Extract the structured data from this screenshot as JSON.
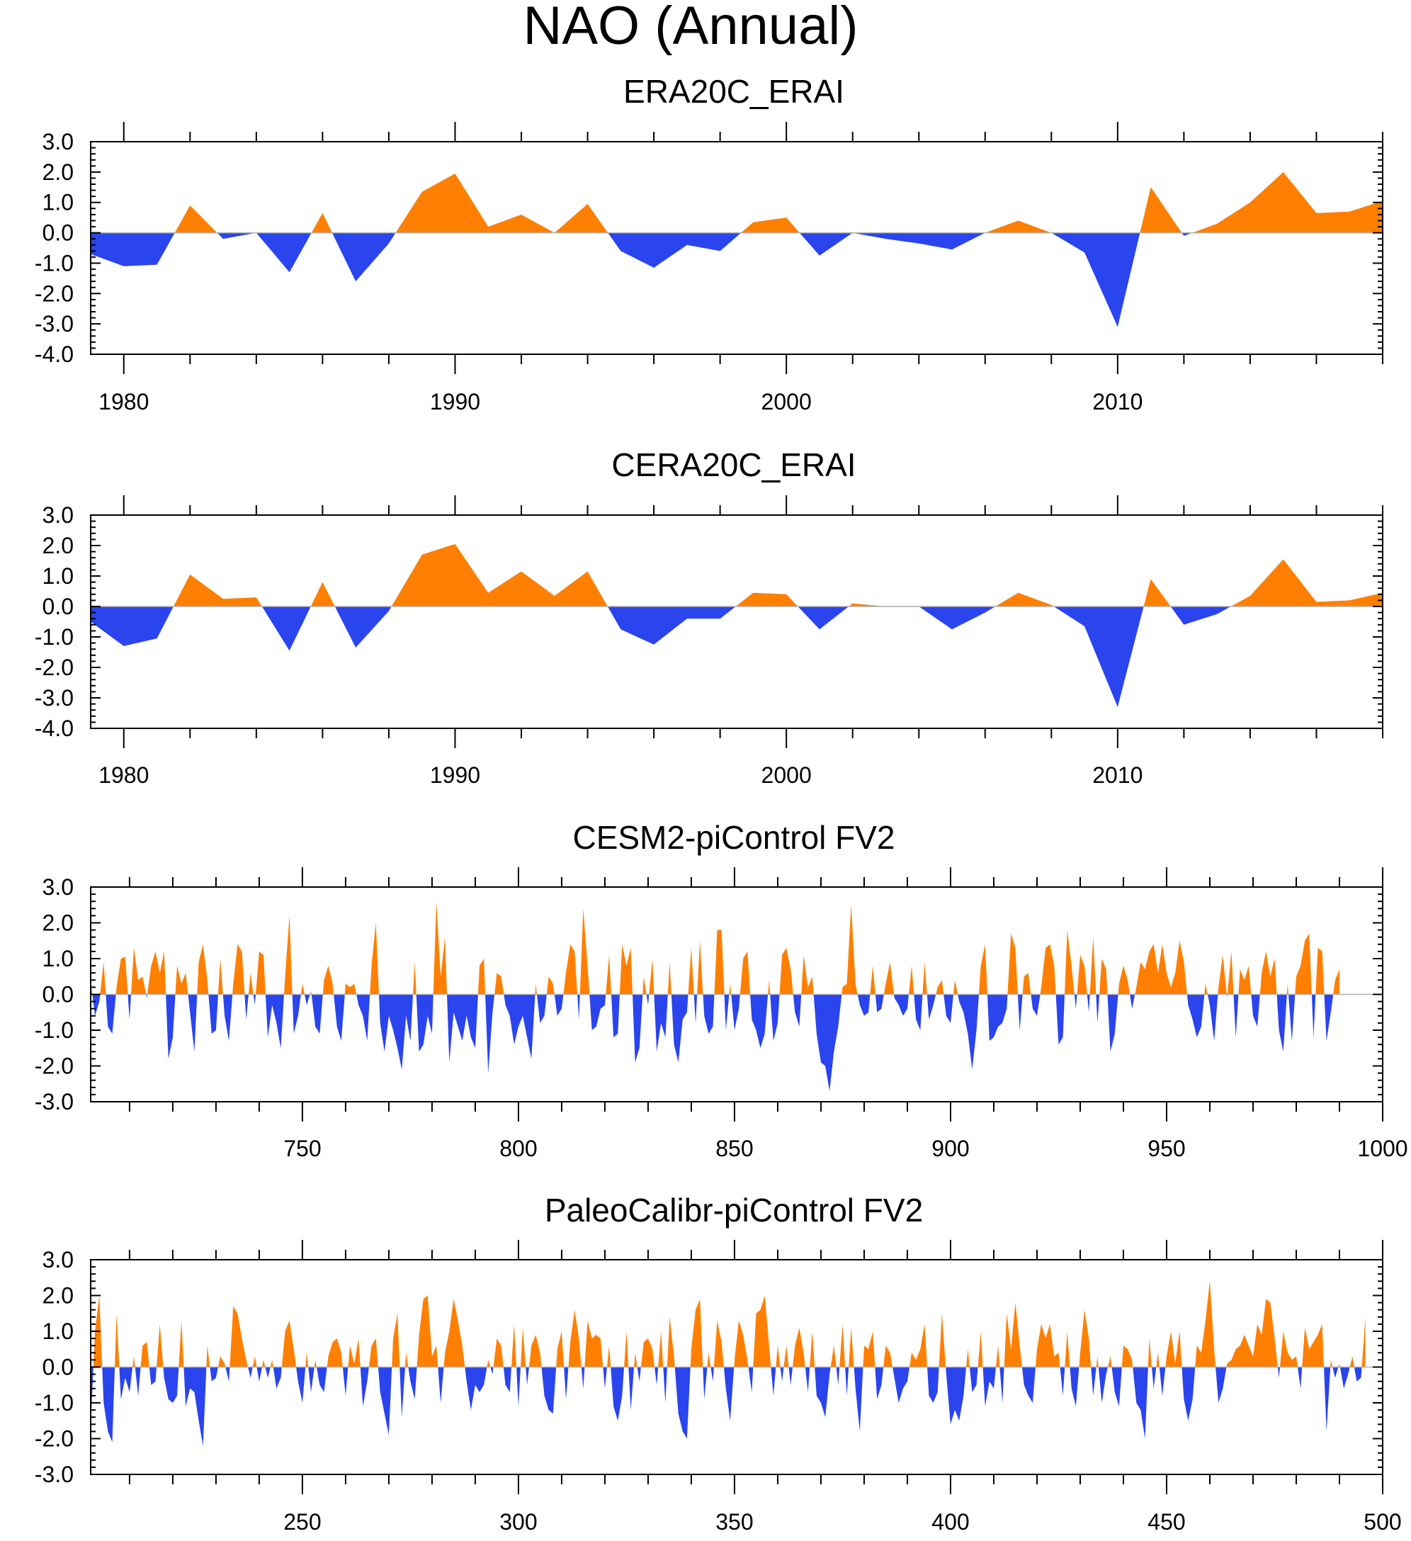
{
  "title": "NAO (Annual)",
  "colors": {
    "positive": "#ff7f00",
    "negative": "#2a44ee",
    "frame": "#000000",
    "zero_line": "#b0b0b0"
  },
  "chart_data": [
    {
      "type": "area",
      "title": "ERA20C_ERAI",
      "xlabel": "",
      "ylabel": "",
      "xlim": [
        1979,
        2018
      ],
      "ylim": [
        -4.0,
        3.0
      ],
      "yticks": [
        3,
        2,
        1,
        0,
        -1,
        -2,
        -3,
        -4
      ],
      "ytick_labels": [
        "3.0",
        "2.0",
        "1.0",
        "0.0",
        "-1.0",
        "-2.0",
        "-3.0",
        "-4.0"
      ],
      "xticks": [
        1980,
        1990,
        2000,
        2010
      ],
      "xtick_labels": [
        "1980",
        "1990",
        "2000",
        "2010"
      ],
      "x": [
        1979,
        1980,
        1981,
        1982,
        1983,
        1984,
        1985,
        1986,
        1987,
        1988,
        1989,
        1990,
        1991,
        1992,
        1993,
        1994,
        1995,
        1996,
        1997,
        1998,
        1999,
        2000,
        2001,
        2002,
        2003,
        2004,
        2005,
        2006,
        2007,
        2008,
        2009,
        2010,
        2011,
        2012,
        2013,
        2014,
        2015,
        2016,
        2017,
        2018
      ],
      "values": [
        -0.7,
        -1.1,
        -1.05,
        0.9,
        -0.2,
        0.0,
        -1.3,
        0.65,
        -1.6,
        -0.35,
        1.35,
        1.95,
        0.2,
        0.6,
        0.0,
        0.95,
        -0.6,
        -1.15,
        -0.4,
        -0.6,
        0.35,
        0.5,
        -0.75,
        0.0,
        -0.2,
        -0.35,
        -0.55,
        0.0,
        0.4,
        0.0,
        -0.65,
        -3.1,
        1.5,
        -0.1,
        0.3,
        1.0,
        2.0,
        0.65,
        0.7,
        1.05
      ]
    },
    {
      "type": "area",
      "title": "CERA20C_ERAI",
      "xlabel": "",
      "ylabel": "",
      "xlim": [
        1979,
        2018
      ],
      "ylim": [
        -4.0,
        3.0
      ],
      "yticks": [
        3,
        2,
        1,
        0,
        -1,
        -2,
        -3,
        -4
      ],
      "ytick_labels": [
        "3.0",
        "2.0",
        "1.0",
        "0.0",
        "-1.0",
        "-2.0",
        "-3.0",
        "-4.0"
      ],
      "xticks": [
        1980,
        1990,
        2000,
        2010
      ],
      "xtick_labels": [
        "1980",
        "1990",
        "2000",
        "2010"
      ],
      "x": [
        1979,
        1980,
        1981,
        1982,
        1983,
        1984,
        1985,
        1986,
        1987,
        1988,
        1989,
        1990,
        1991,
        1992,
        1993,
        1994,
        1995,
        1996,
        1997,
        1998,
        1999,
        2000,
        2001,
        2002,
        2003,
        2004,
        2005,
        2006,
        2007,
        2008,
        2009,
        2010,
        2011,
        2012,
        2013,
        2014,
        2015,
        2016,
        2017,
        2018
      ],
      "values": [
        -0.5,
        -1.3,
        -1.05,
        1.05,
        0.25,
        0.3,
        -1.45,
        0.8,
        -1.35,
        -0.15,
        1.7,
        2.05,
        0.45,
        1.15,
        0.35,
        1.15,
        -0.75,
        -1.25,
        -0.4,
        -0.4,
        0.45,
        0.4,
        -0.75,
        0.1,
        0.0,
        0.0,
        -0.75,
        -0.2,
        0.45,
        0.05,
        -0.65,
        -3.3,
        0.9,
        -0.6,
        -0.25,
        0.35,
        1.55,
        0.15,
        0.2,
        0.45
      ]
    },
    {
      "type": "area",
      "title": "CESM2-piControl FV2",
      "xlabel": "",
      "ylabel": "",
      "xlim": [
        701,
        1000
      ],
      "ylim": [
        -3.0,
        3.0
      ],
      "yticks": [
        3,
        2,
        1,
        0,
        -1,
        -2,
        -3
      ],
      "ytick_labels": [
        "3.0",
        "2.0",
        "1.0",
        "0.0",
        "-1.0",
        "-2.0",
        "-3.0"
      ],
      "xticks": [
        750,
        800,
        850,
        900,
        950,
        1000
      ],
      "xtick_labels": [
        "750",
        "800",
        "850",
        "900",
        "950",
        "1000"
      ],
      "x_start": 701,
      "values": [
        0.4,
        -0.6,
        -0.2,
        0.9,
        -0.9,
        -1.1,
        0.2,
        1.0,
        1.05,
        -0.7,
        1.3,
        0.4,
        0.5,
        -0.1,
        0.8,
        1.2,
        0.6,
        1.2,
        -1.8,
        -1.2,
        0.8,
        0.3,
        0.6,
        -0.5,
        -1.6,
        0.9,
        1.4,
        0.4,
        -1.1,
        -1.0,
        1.0,
        -0.6,
        -1.3,
        0.3,
        1.4,
        1.2,
        -0.7,
        0.6,
        -0.3,
        1.2,
        1.1,
        -1.2,
        -0.3,
        -0.8,
        -1.5,
        0.5,
        2.2,
        -1.1,
        -0.6,
        0.3,
        -0.3,
        0.1,
        -0.9,
        -1.1,
        0.4,
        0.8,
        0.3,
        -0.9,
        -1.3,
        0.3,
        0.2,
        0.3,
        -0.3,
        -0.6,
        -1.3,
        0.8,
        2.0,
        -0.8,
        -1.6,
        -0.6,
        -1.0,
        -1.5,
        -2.1,
        -0.6,
        -1.3,
        0.9,
        -1.6,
        -1.4,
        -0.6,
        -1.1,
        2.6,
        0.5,
        1.6,
        -1.9,
        -0.5,
        -0.9,
        -1.3,
        -0.6,
        -1.2,
        -1.5,
        0.8,
        1.0,
        -2.2,
        -0.5,
        0.6,
        0.5,
        -0.3,
        -0.6,
        -1.4,
        -0.9,
        -0.6,
        -1.2,
        -1.8,
        0.3,
        -0.8,
        -0.6,
        0.5,
        0.3,
        -0.6,
        -0.4,
        0.6,
        1.4,
        1.2,
        -0.7,
        2.4,
        0.8,
        -1.0,
        -0.9,
        -0.4,
        -0.3,
        1.1,
        -1.2,
        -1.1,
        1.4,
        0.8,
        1.3,
        -1.9,
        -1.5,
        0.5,
        -0.3,
        1.0,
        -1.6,
        -0.8,
        -1.2,
        0.9,
        -1.4,
        -1.9,
        -0.7,
        -0.5,
        1.3,
        -0.8,
        1.5,
        -0.6,
        -1.1,
        -0.9,
        1.8,
        1.8,
        -1.0,
        0.3,
        -1.0,
        -0.4,
        1.0,
        1.2,
        -0.7,
        -1.0,
        -1.5,
        -1.1,
        0.4,
        -1.3,
        -0.8,
        1.1,
        1.3,
        0.7,
        -0.5,
        -0.9,
        1.1,
        0.2,
        0.5,
        -1.1,
        -1.9,
        -2.0,
        -2.7,
        -1.6,
        -0.9,
        0.2,
        0.3,
        2.5,
        0.3,
        -0.3,
        -0.6,
        -0.5,
        0.8,
        -0.5,
        -0.4,
        0.3,
        0.9,
        -0.1,
        -0.3,
        -0.6,
        -0.4,
        0.8,
        -0.7,
        -1.0,
        0.9,
        -0.7,
        -0.3,
        0.2,
        0.4,
        -0.6,
        -0.8,
        0.4,
        -0.2,
        -0.5,
        -1.1,
        -2.1,
        -1.0,
        0.8,
        1.4,
        -1.3,
        -1.2,
        -0.9,
        -0.8,
        -0.4,
        1.7,
        1.3,
        -1.0,
        0.5,
        0.6,
        -0.4,
        -0.6,
        0.2,
        1.3,
        1.4,
        0.8,
        -1.4,
        -1.2,
        1.8,
        0.8,
        -0.4,
        1.1,
        0.8,
        -0.5,
        1.6,
        -0.8,
        1.0,
        0.7,
        -1.6,
        -1.1,
        0.3,
        0.8,
        0.4,
        -0.4,
        0.2,
        0.9,
        0.7,
        1.2,
        1.4,
        0.6,
        1.4,
        0.6,
        0.2,
        0.6,
        1.5,
        0.9,
        -0.3,
        -0.7,
        -1.2,
        -0.9,
        0.3,
        -0.3,
        -1.3,
        0.2,
        1.1,
        -0.1,
        1.2,
        -1.2,
        0.7,
        0.4,
        0.8,
        -0.6,
        -0.9,
        0.6,
        1.2,
        0.5,
        1.0,
        -1.0,
        -1.6,
        0.3,
        -1.3,
        0.5,
        0.8,
        1.5,
        1.7,
        -1.2,
        1.3,
        1.2,
        -1.3,
        -0.5,
        0.4,
        0.7
      ]
    },
    {
      "type": "area",
      "title": "PaleoCalibr-piControl FV2",
      "xlabel": "",
      "ylabel": "",
      "xlim": [
        201,
        500
      ],
      "ylim": [
        -3.0,
        3.0
      ],
      "yticks": [
        3,
        2,
        1,
        0,
        -1,
        -2,
        -3
      ],
      "ytick_labels": [
        "3.0",
        "2.0",
        "1.0",
        "0.0",
        "-1.0",
        "-2.0",
        "-3.0"
      ],
      "xticks": [
        250,
        300,
        350,
        400,
        450,
        500
      ],
      "xtick_labels": [
        "250",
        "300",
        "350",
        "400",
        "450",
        "500"
      ],
      "x_start": 201,
      "values": [
        -1.7,
        1.0,
        2.0,
        -1.0,
        -1.8,
        -2.1,
        1.5,
        -0.9,
        -0.3,
        -0.7,
        0.3,
        -0.8,
        0.6,
        0.7,
        -0.5,
        -0.4,
        1.2,
        -0.3,
        -0.9,
        -1.0,
        -0.8,
        1.3,
        -1.1,
        -0.6,
        -0.7,
        -1.5,
        -2.2,
        0.6,
        -0.4,
        -0.3,
        0.3,
        0.1,
        -0.4,
        1.7,
        1.5,
        0.8,
        0.2,
        -0.3,
        0.3,
        -0.4,
        0.2,
        -0.3,
        0.2,
        -0.6,
        -0.3,
        1.0,
        1.3,
        0.5,
        -0.4,
        -1.0,
        0.4,
        -0.7,
        0.2,
        -0.5,
        -0.7,
        0.3,
        0.7,
        0.8,
        0.4,
        -0.8,
        0.6,
        0.1,
        0.8,
        -1.1,
        -0.4,
        0.6,
        0.8,
        -0.7,
        -1.3,
        -1.9,
        0.8,
        1.5,
        -1.4,
        0.4,
        -0.4,
        -0.9,
        0.9,
        1.9,
        2.0,
        0.3,
        0.6,
        -1.0,
        0.4,
        1.0,
        1.9,
        1.3,
        0.6,
        -0.4,
        -1.2,
        -0.5,
        -0.7,
        -0.5,
        0.2,
        -0.2,
        0.8,
        0.6,
        -0.5,
        -0.7,
        1.2,
        -1.1,
        1.1,
        -0.5,
        0.6,
        0.9,
        0.4,
        -0.8,
        -1.2,
        -1.3,
        0.5,
        1.0,
        -0.9,
        0.7,
        1.6,
        0.8,
        -0.6,
        1.3,
        0.8,
        0.9,
        0.8,
        -0.6,
        0.6,
        -1.1,
        -1.5,
        -0.8,
        1.0,
        -1.2,
        0.4,
        -0.4,
        0.7,
        0.8,
        0.5,
        -0.5,
        1.0,
        -1.0,
        1.4,
        0.3,
        -1.3,
        -1.8,
        -2.0,
        0.5,
        1.6,
        1.9,
        -0.9,
        0.4,
        -0.4,
        1.3,
        0.7,
        -0.6,
        -1.5,
        0.2,
        1.3,
        0.9,
        0.2,
        -0.7,
        1.5,
        1.6,
        2.0,
        0.6,
        -0.8,
        0.6,
        -0.4,
        0.6,
        -0.5,
        0.6,
        1.1,
        0.4,
        -0.7,
        1.0,
        -0.8,
        -1.0,
        -1.4,
        -0.2,
        0.6,
        -0.5,
        1.2,
        -0.8,
        1.1,
        -0.6,
        -1.8,
        0.6,
        0.5,
        1.0,
        -0.9,
        -0.5,
        0.6,
        0.4,
        -0.3,
        -1.0,
        -0.6,
        -0.4,
        0.4,
        0.2,
        0.5,
        1.2,
        -0.8,
        -1.0,
        -0.7,
        1.5,
        -0.2,
        -1.6,
        -1.2,
        -1.5,
        -0.8,
        0.5,
        -0.7,
        -0.5,
        1.0,
        -1.1,
        -0.4,
        -0.6,
        0.6,
        -1.0,
        1.5,
        0.5,
        1.8,
        0.6,
        -0.5,
        -0.8,
        -1.0,
        0.5,
        1.2,
        0.8,
        1.2,
        0.3,
        0.4,
        -0.8,
        1.0,
        -0.6,
        -1.1,
        0.4,
        1.6,
        0.8,
        -0.8,
        0.3,
        -1.0,
        -0.2,
        0.3,
        -0.7,
        -1.1,
        0.6,
        0.5,
        0.2,
        -1.0,
        -1.2,
        -2.0,
        0.8,
        -0.6,
        0.4,
        -0.8,
        0.3,
        1.0,
        0.1,
        1.0,
        -0.9,
        -1.5,
        -0.9,
        0.6,
        0.4,
        1.3,
        2.4,
        0.5,
        -1.0,
        -0.6,
        0.1,
        0.2,
        0.5,
        0.6,
        0.9,
        0.6,
        0.3,
        1.2,
        0.9,
        1.9,
        1.8,
        0.8,
        -0.3,
        1.0,
        0.4,
        0.2,
        0.3,
        -0.6,
        1.1,
        0.5,
        0.7,
        0.9,
        1.2,
        -1.8,
        0.2,
        -0.3,
        0.1,
        -0.6,
        -0.2,
        0.3,
        -0.4,
        -0.3,
        1.4
      ]
    }
  ]
}
